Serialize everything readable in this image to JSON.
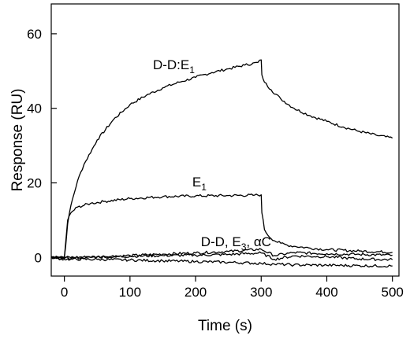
{
  "chart_data": {
    "type": "line",
    "title": "",
    "xlabel": "Time (s)",
    "ylabel": "Response (RU)",
    "xlim": [
      -20,
      510
    ],
    "ylim": [
      -5,
      68
    ],
    "xticks": [
      0,
      100,
      200,
      300,
      400,
      500
    ],
    "yticks": [
      0,
      20,
      40,
      60
    ],
    "grid": false,
    "series": [
      {
        "x": [
          -20,
          0,
          2,
          5,
          10,
          20,
          30,
          50,
          75,
          100,
          125,
          150,
          175,
          200,
          225,
          250,
          275,
          295,
          300,
          301,
          305,
          315,
          330,
          350,
          375,
          400,
          425,
          450,
          475,
          500
        ],
        "y": [
          0,
          0,
          3,
          9,
          14,
          20.5,
          25,
          31.5,
          37,
          41,
          43.5,
          45.5,
          47,
          48.3,
          49.6,
          50.6,
          51.6,
          52.3,
          53,
          49,
          47,
          45,
          42.5,
          40,
          38,
          36.5,
          35,
          33.8,
          32.8,
          32
        ]
      },
      {
        "x": [
          -20,
          0,
          2,
          5,
          10,
          20,
          40,
          60,
          100,
          150,
          200,
          250,
          290,
          300,
          301,
          305,
          310,
          320,
          330,
          340,
          350,
          375,
          400,
          450,
          500
        ],
        "y": [
          0,
          0,
          4,
          10,
          12,
          13.5,
          14.5,
          15,
          15.8,
          16.3,
          16.5,
          16.6,
          16.7,
          16.8,
          12,
          7.5,
          6,
          4.5,
          3.8,
          3.3,
          3,
          2.5,
          2.1,
          1.7,
          1.4
        ]
      },
      {
        "x": [
          -20,
          0,
          50,
          100,
          150,
          200,
          250,
          300,
          320,
          350,
          400,
          450,
          500
        ],
        "y": [
          0.3,
          0,
          0.2,
          0.5,
          0.9,
          1.2,
          1.6,
          2.2,
          0.5,
          1.3,
          1.0,
          0.8,
          0.6
        ]
      },
      {
        "x": [
          -20,
          0,
          50,
          100,
          150,
          200,
          250,
          300,
          320,
          350,
          400,
          450,
          500
        ],
        "y": [
          0,
          -0.3,
          0.1,
          0.3,
          0.5,
          0.6,
          0.8,
          1.2,
          -0.5,
          0.4,
          0.2,
          -0.4,
          -0.6
        ]
      },
      {
        "x": [
          -20,
          0,
          50,
          100,
          150,
          200,
          250,
          300,
          320,
          350,
          400,
          450,
          500
        ],
        "y": [
          0,
          -0.5,
          -0.5,
          -0.7,
          -0.9,
          -1.1,
          -1.3,
          -1.6,
          -1.8,
          -2.0,
          -2.1,
          -2.2,
          -2.3
        ]
      }
    ],
    "annotations": [
      {
        "base": "D-D:E",
        "sub": "1",
        "x": 135,
        "y": 50.5
      },
      {
        "base": "E",
        "sub": "1",
        "x": 195,
        "y": 19.0
      },
      {
        "base": "D-D, E",
        "sub": "3",
        "tail": ", αC",
        "x": 208,
        "y": 3.0
      }
    ]
  }
}
